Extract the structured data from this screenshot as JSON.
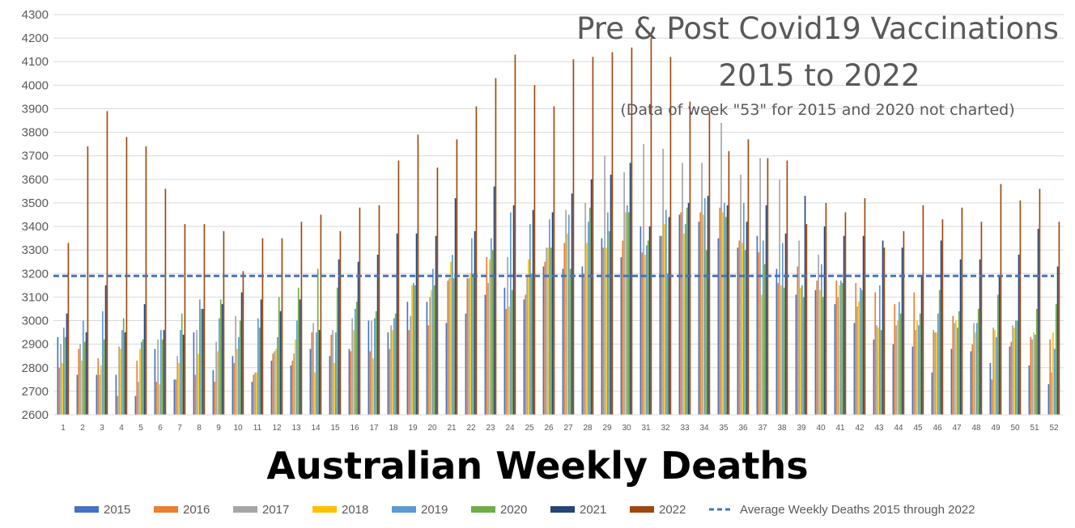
{
  "chart_data": {
    "type": "bar",
    "title": "Pre & Post Covid19 Vaccinations",
    "title_line2": "2015 to 2022",
    "note": "(Data of week \"53\" for 2015 and 2020 not charted)",
    "subtitle": "Australian Weekly Deaths",
    "ylim": [
      2600,
      4300
    ],
    "yticks": [
      2600,
      2700,
      2800,
      2900,
      3000,
      3100,
      3200,
      3300,
      3400,
      3500,
      3600,
      3700,
      3800,
      3900,
      4000,
      4100,
      4200,
      4300
    ],
    "grid": "horizontal",
    "legend_position": "bottom",
    "categories": [
      "1",
      "2",
      "3",
      "4",
      "5",
      "6",
      "7",
      "8",
      "9",
      "10",
      "11",
      "12",
      "13",
      "14",
      "15",
      "16",
      "17",
      "18",
      "19",
      "20",
      "21",
      "22",
      "23",
      "24",
      "25",
      "26",
      "27",
      "28",
      "29",
      "30",
      "31",
      "32",
      "33",
      "34",
      "35",
      "36",
      "37",
      "38",
      "39",
      "40",
      "41",
      "42",
      "43",
      "44",
      "45",
      "46",
      "47",
      "48",
      "49",
      "50",
      "51",
      "52"
    ],
    "series": [
      {
        "name": "2015",
        "color": "#4472c4",
        "values": [
          2930,
          2770,
          2770,
          2770,
          2680,
          2880,
          2750,
          2950,
          2790,
          2850,
          2740,
          2830,
          2810,
          2880,
          2850,
          2880,
          3000,
          2950,
          3080,
          3080,
          2990,
          3030,
          3110,
          3140,
          3090,
          3230,
          3220,
          3230,
          3350,
          3270,
          3400,
          3360,
          3450,
          3420,
          3350,
          3310,
          3360,
          3220,
          3110,
          3130,
          3070,
          2990,
          2920,
          2900,
          2890,
          2780,
          2880,
          2870,
          2820,
          2890,
          2810,
          2730
        ]
      },
      {
        "name": "2016",
        "color": "#ed7d31",
        "values": [
          2800,
          2880,
          2840,
          2680,
          2830,
          2740,
          2750,
          2770,
          2740,
          2820,
          2770,
          2860,
          2830,
          2950,
          2940,
          2870,
          2870,
          2880,
          2960,
          2980,
          3170,
          3180,
          3270,
          3050,
          3110,
          3250,
          3330,
          3200,
          3310,
          3340,
          3290,
          3360,
          3460,
          3460,
          3480,
          3340,
          3290,
          3160,
          3230,
          3170,
          3170,
          3160,
          3120,
          3070,
          3120,
          2960,
          3020,
          2900,
          2750,
          2910,
          2930,
          2920
        ]
      },
      {
        "name": "2017",
        "color": "#a5a5a5",
        "values": [
          2900,
          2900,
          2770,
          2890,
          2740,
          2920,
          2850,
          2960,
          2910,
          3020,
          2780,
          2870,
          2860,
          2990,
          2960,
          3010,
          3000,
          2980,
          3020,
          3100,
          3180,
          3180,
          3160,
          3270,
          3190,
          3310,
          3470,
          3500,
          3700,
          3630,
          3750,
          3730,
          3670,
          3670,
          3840,
          3620,
          3690,
          3600,
          3340,
          3280,
          3100,
          3060,
          2980,
          2980,
          2960,
          2950,
          2990,
          2990,
          2970,
          2980,
          2920,
          2780
        ]
      },
      {
        "name": "2018",
        "color": "#ffc000",
        "values": [
          2820,
          2830,
          2810,
          2880,
          2880,
          2730,
          2820,
          2860,
          2870,
          2880,
          2780,
          2880,
          2920,
          2780,
          2820,
          2960,
          2840,
          2960,
          3150,
          3130,
          3250,
          3200,
          3260,
          3060,
          3260,
          3310,
          3370,
          3330,
          3310,
          3460,
          3280,
          3410,
          3370,
          3450,
          3460,
          3330,
          3110,
          3150,
          3140,
          3130,
          3150,
          3080,
          2970,
          3000,
          3000,
          2950,
          3000,
          2950,
          2960,
          2970,
          2950,
          2950
        ]
      },
      {
        "name": "2019",
        "color": "#5b9bd5",
        "values": [
          2970,
          3000,
          3040,
          2960,
          2910,
          2960,
          2960,
          3090,
          3010,
          2930,
          3010,
          2930,
          3000,
          2950,
          2950,
          3050,
          3010,
          3010,
          3160,
          3220,
          3280,
          3350,
          3350,
          3460,
          3410,
          3430,
          3450,
          3420,
          3460,
          3490,
          3320,
          3470,
          3410,
          3520,
          3500,
          3500,
          3340,
          3330,
          3150,
          3240,
          3170,
          3140,
          3150,
          3080,
          2980,
          3030,
          2970,
          2990,
          2930,
          3000,
          2940,
          2880
        ]
      },
      {
        "name": "2020",
        "color": "#70ad47",
        "values": [
          2930,
          2910,
          2920,
          3010,
          2920,
          2920,
          3030,
          3050,
          3090,
          3000,
          2970,
          3100,
          3140,
          3220,
          3140,
          3080,
          3040,
          3030,
          3150,
          3150,
          3180,
          3200,
          3300,
          3130,
          3200,
          3310,
          3220,
          3480,
          3380,
          3460,
          3340,
          3200,
          3480,
          3300,
          3440,
          3300,
          3240,
          3140,
          3100,
          3100,
          3160,
          3130,
          2960,
          3030,
          3030,
          3130,
          3040,
          3050,
          3110,
          3000,
          3050,
          3070
        ]
      },
      {
        "name": "2021",
        "color": "#264478",
        "values": [
          3030,
          2950,
          3150,
          2950,
          3070,
          2960,
          2940,
          3050,
          3070,
          3120,
          3090,
          3040,
          3090,
          2960,
          3260,
          3250,
          3280,
          3370,
          3370,
          3360,
          3520,
          3380,
          3570,
          3490,
          3470,
          3460,
          3540,
          3600,
          3620,
          3670,
          3400,
          3440,
          3500,
          3530,
          3490,
          3420,
          3490,
          3370,
          3530,
          3400,
          3360,
          3360,
          3340,
          3310,
          3190,
          3340,
          3260,
          3260,
          3190,
          3280,
          3390,
          3230
        ]
      },
      {
        "name": "2022",
        "color": "#9e480e",
        "values": [
          3330,
          3740,
          3890,
          3780,
          3740,
          3560,
          3410,
          3410,
          3380,
          3210,
          3350,
          3350,
          3420,
          3450,
          3380,
          3480,
          3490,
          3680,
          3790,
          3650,
          3770,
          3910,
          4030,
          4130,
          4000,
          3910,
          4110,
          4120,
          4140,
          4160,
          4200,
          4120,
          3930,
          3890,
          3720,
          3770,
          3690,
          3680,
          3410,
          3500,
          3460,
          3520,
          3310,
          3380,
          3490,
          3430,
          3480,
          3420,
          3580,
          3510,
          3560,
          3420
        ]
      }
    ],
    "average_line": {
      "name": "Average Weekly Deaths 2015 through 2022",
      "value": 3190,
      "color": "#4472c4"
    }
  }
}
